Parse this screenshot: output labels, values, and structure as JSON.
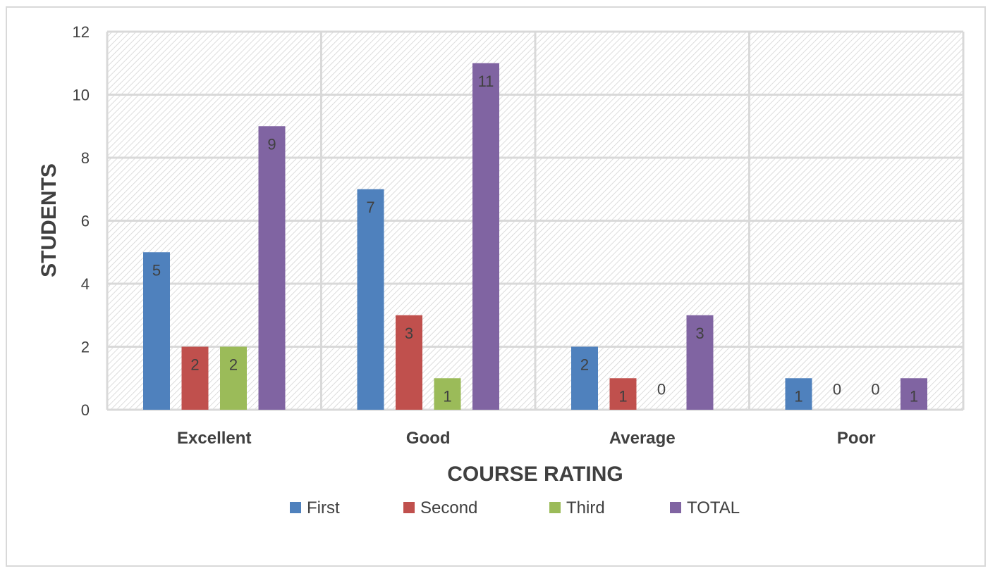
{
  "chart_data": {
    "type": "bar",
    "title": "",
    "xlabel": "COURSE RATING",
    "ylabel": "STUDENTS",
    "categories": [
      "Excellent",
      "Good",
      "Average",
      "Poor"
    ],
    "ylim": [
      0,
      12
    ],
    "yticks": [
      0,
      2,
      4,
      6,
      8,
      10,
      12
    ],
    "grid": true,
    "legend_position": "bottom",
    "series": [
      {
        "name": "First",
        "color": "#4f81bd",
        "values": [
          5,
          7,
          2,
          1
        ]
      },
      {
        "name": "Second",
        "color": "#c0504d",
        "values": [
          2,
          3,
          1,
          0
        ]
      },
      {
        "name": "Third",
        "color": "#9bbb59",
        "values": [
          2,
          1,
          0,
          0
        ]
      },
      {
        "name": "TOTAL",
        "color": "#8064a2",
        "values": [
          9,
          11,
          3,
          1
        ]
      }
    ]
  }
}
